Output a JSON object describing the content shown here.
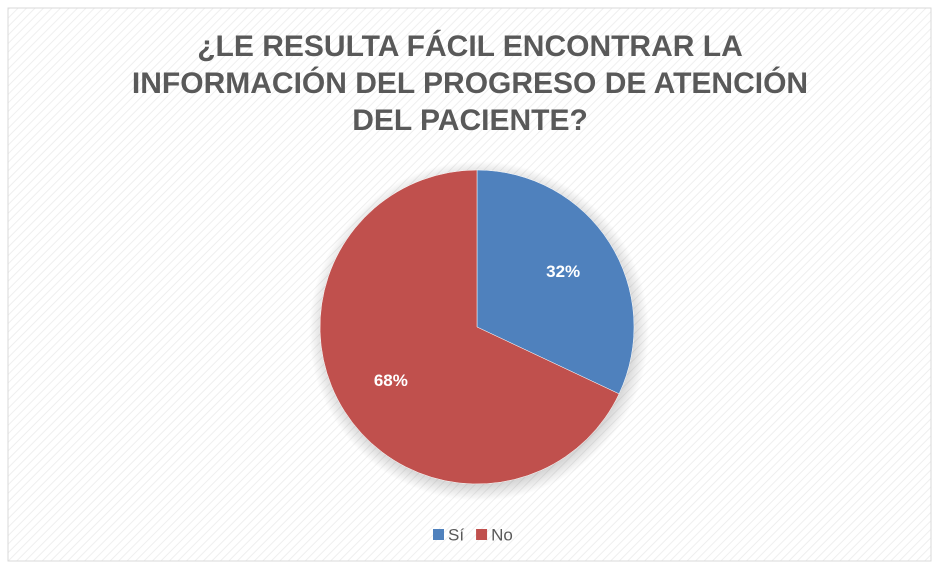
{
  "chart_data": {
    "type": "pie",
    "title": "¿LE RESULTA FÁCIL ENCONTRAR LA INFORMACIÓN DEL PROGRESO DE ATENCIÓN DEL PACIENTE?",
    "categories": [
      "Sí",
      "No"
    ],
    "values": [
      32,
      68
    ],
    "value_labels": [
      "32%",
      "68%"
    ],
    "colors": [
      "#4f81bd",
      "#c0504d"
    ],
    "legend": "bottom"
  }
}
